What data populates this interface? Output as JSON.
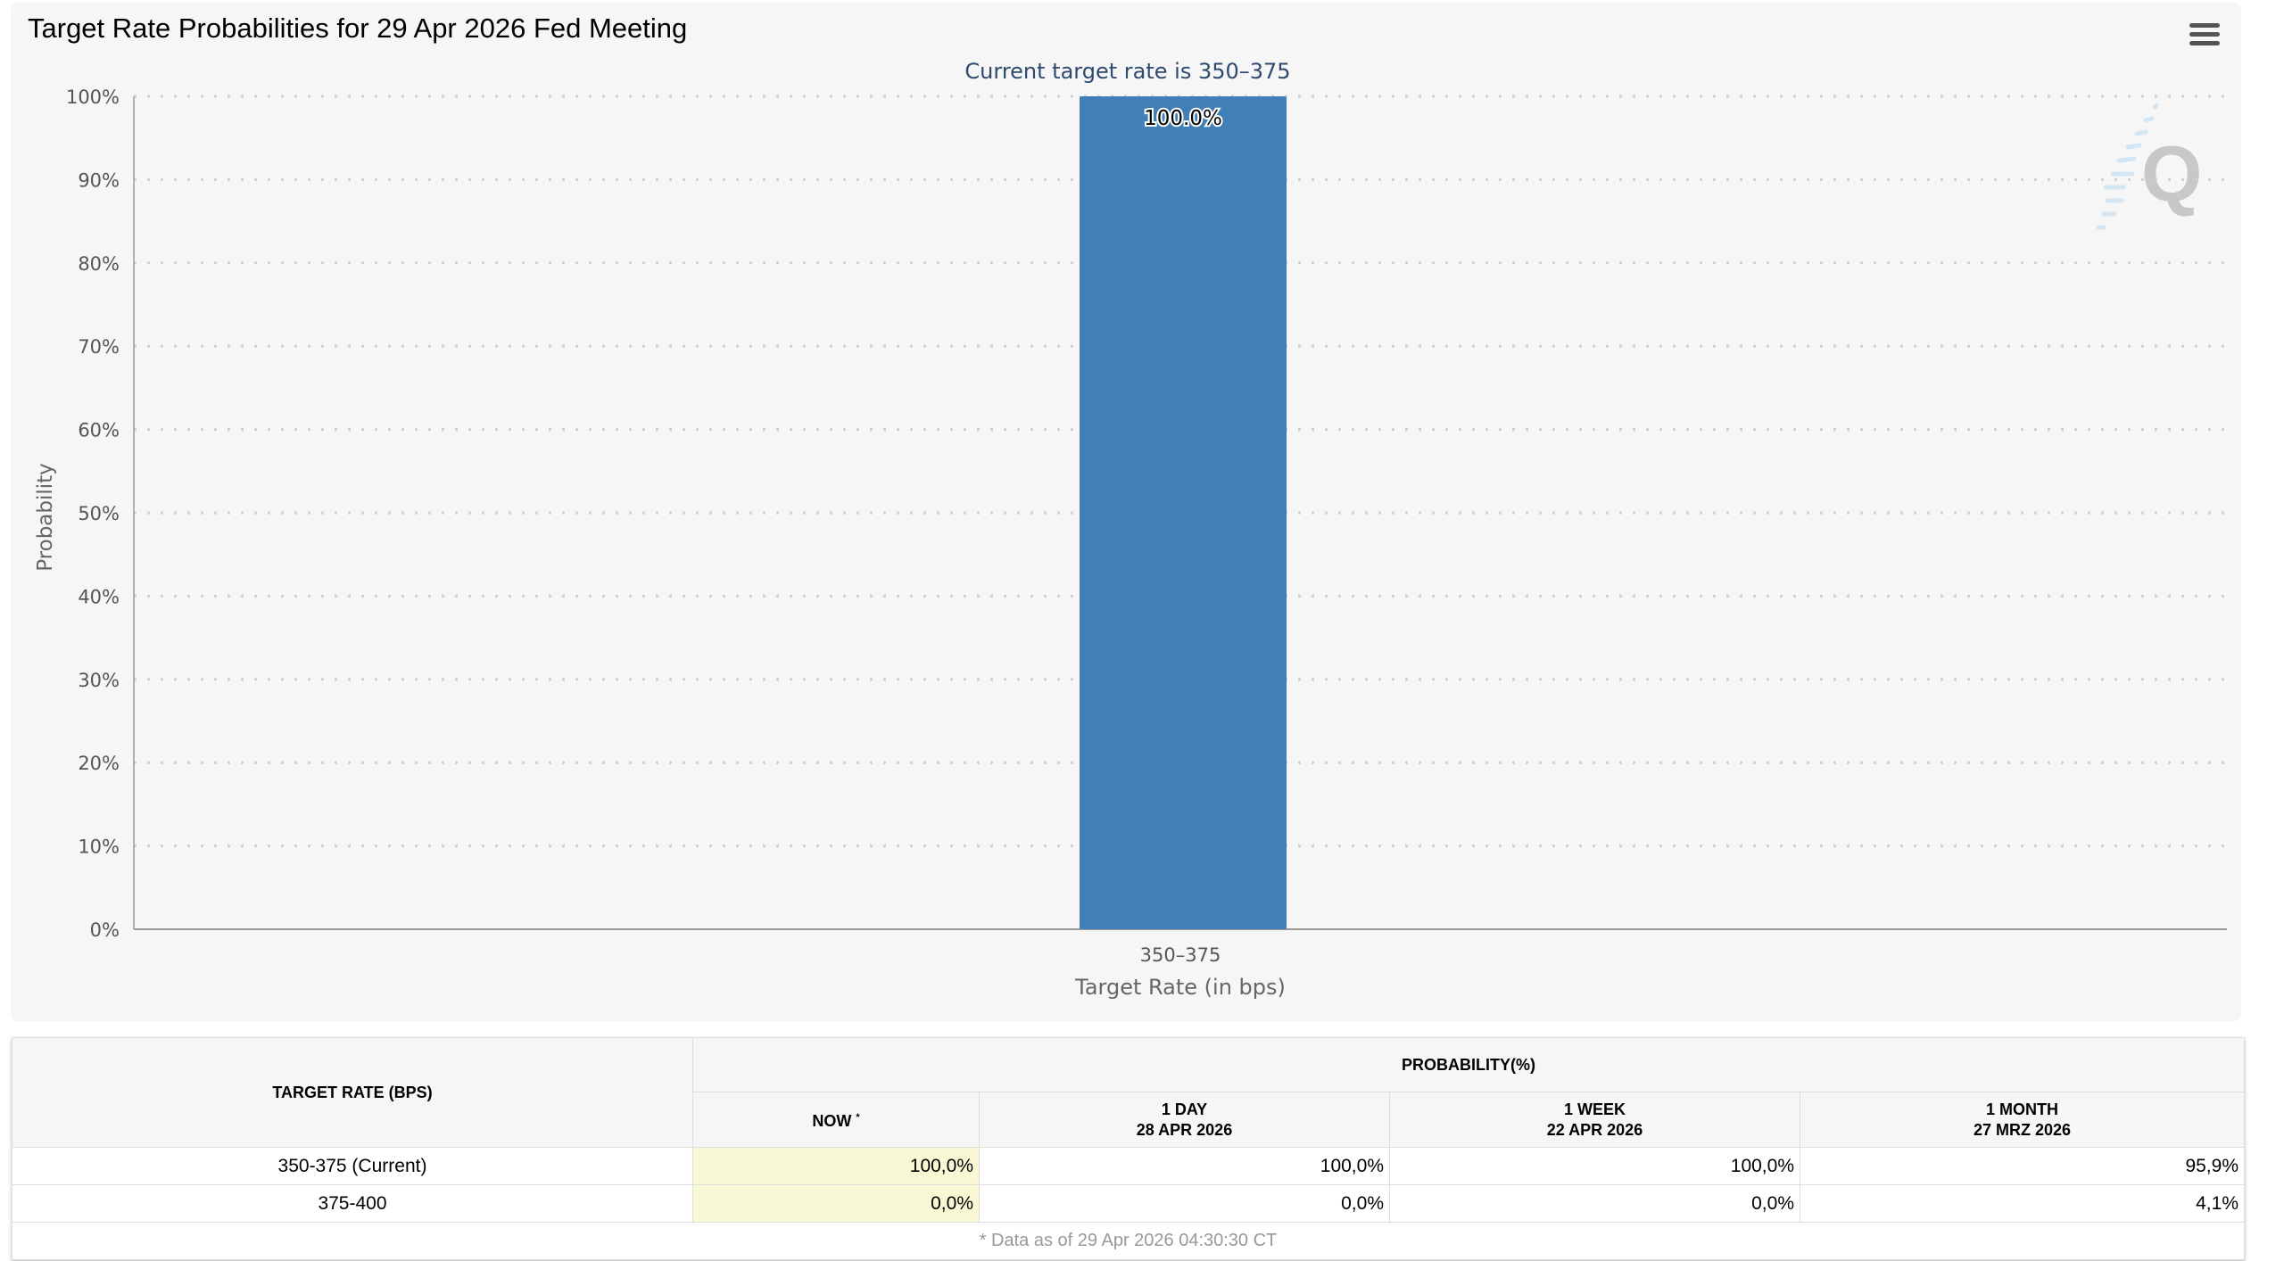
{
  "header": {
    "title": "Target Rate Probabilities for 29 Apr 2026 Fed Meeting",
    "menu_icon": "hamburger-icon"
  },
  "chart_data": {
    "type": "bar",
    "subtitle": "Current target rate is 350–375",
    "categories": [
      "350–375"
    ],
    "values": [
      100.0
    ],
    "data_labels": [
      "100.0%"
    ],
    "xlabel": "Target Rate (in bps)",
    "ylabel": "Probability",
    "ylim": [
      0,
      100
    ],
    "yticks": [
      "0%",
      "10%",
      "20%",
      "30%",
      "40%",
      "50%",
      "60%",
      "70%",
      "80%",
      "90%",
      "100%"
    ],
    "grid": true,
    "bar_color": "#4180b6",
    "subtitle_color": "#2f4a6e"
  },
  "table": {
    "col_target": "TARGET RATE (BPS)",
    "col_prob": "PROBABILITY(%)",
    "sub_cols": [
      {
        "line1": "NOW",
        "sup": "*",
        "line2": ""
      },
      {
        "line1": "1 DAY",
        "line2": "28 APR 2026"
      },
      {
        "line1": "1 WEEK",
        "line2": "22 APR 2026"
      },
      {
        "line1": "1 MONTH",
        "line2": "27 MRZ 2026"
      }
    ],
    "rows": [
      {
        "rate": "350-375 (Current)",
        "values": [
          "100,0%",
          "100,0%",
          "100,0%",
          "95,9%"
        ]
      },
      {
        "rate": "375-400",
        "values": [
          "0,0%",
          "0,0%",
          "0,0%",
          "4,1%"
        ]
      }
    ],
    "footnote": "* Data as of 29 Apr 2026 04:30:30 CT"
  }
}
